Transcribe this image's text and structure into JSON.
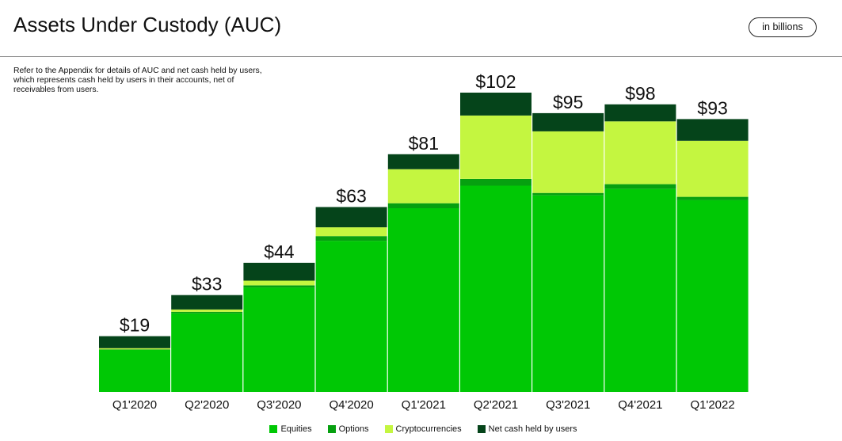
{
  "header": {
    "title": "Assets Under Custody (AUC)",
    "units_badge": "in billions"
  },
  "note": "Refer to the Appendix for details of AUC and net cash held by users, which represents cash held by users in their accounts, net of receivables from users.",
  "chart_data": {
    "type": "bar",
    "stacked": true,
    "categories": [
      "Q1'2020",
      "Q2'2020",
      "Q3'2020",
      "Q4'2020",
      "Q1'2021",
      "Q2'2021",
      "Q3'2021",
      "Q4'2021",
      "Q1'2022"
    ],
    "totals_labels": [
      "$19",
      "$33",
      "$44",
      "$63",
      "$81",
      "$102",
      "$95",
      "$98",
      "$93"
    ],
    "totals": [
      19,
      33,
      44,
      63,
      81,
      102,
      95,
      98,
      93
    ],
    "series": [
      {
        "name": "Equities",
        "color": "#00c805",
        "values": [
          14.3,
          26.8,
          35.6,
          51.5,
          62.6,
          70.3,
          67.0,
          69.2,
          65.4
        ]
      },
      {
        "name": "Options",
        "color": "#06a010",
        "values": [
          0.2,
          0.5,
          0.7,
          1.6,
          1.7,
          2.3,
          0.8,
          1.6,
          1.1
        ]
      },
      {
        "name": "Cryptocurrencies",
        "color": "#c4f640",
        "values": [
          0.4,
          0.8,
          1.6,
          3.0,
          11.6,
          21.6,
          21.0,
          21.4,
          19.1
        ]
      },
      {
        "name": "Net cash held by users",
        "color": "#05441a",
        "values": [
          4.1,
          4.9,
          6.1,
          6.9,
          5.1,
          7.8,
          6.2,
          5.8,
          7.4
        ]
      }
    ],
    "ylim": [
      0,
      102
    ],
    "grid": false,
    "legend_position": "bottom-center"
  }
}
